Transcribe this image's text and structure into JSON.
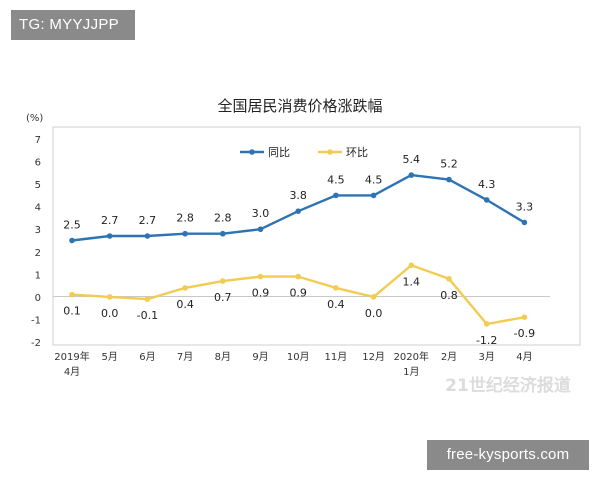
{
  "overlays": {
    "top_left_badge": "TG: MYYJJPP",
    "bottom_right_badge": "free-kysports.com",
    "faint_watermark": "21世纪经济报道"
  },
  "chart_data": {
    "type": "line",
    "title": "全国居民消费价格涨跌幅",
    "ylabel": "(%)",
    "ylim": [
      -2,
      7
    ],
    "yticks": [
      -2,
      -1,
      0,
      1,
      2,
      3,
      4,
      5,
      6,
      7
    ],
    "categories": [
      [
        "2019年",
        "4月"
      ],
      [
        "5月"
      ],
      [
        "6月"
      ],
      [
        "7月"
      ],
      [
        "8月"
      ],
      [
        "9月"
      ],
      [
        "10月"
      ],
      [
        "11月"
      ],
      [
        "12月"
      ],
      [
        "2020年",
        "1月"
      ],
      [
        "2月"
      ],
      [
        "3月"
      ],
      [
        "4月"
      ]
    ],
    "series": [
      {
        "name": "同比",
        "color": "#2e74b5",
        "values": [
          2.5,
          2.7,
          2.7,
          2.8,
          2.8,
          3.0,
          3.8,
          4.5,
          4.5,
          5.4,
          5.2,
          4.3,
          3.3
        ],
        "labels": [
          "2.5",
          "2.7",
          "2.7",
          "2.8",
          "2.8",
          "3.0",
          "3.8",
          "4.5",
          "4.5",
          "5.4",
          "5.2",
          "4.3",
          "3.3"
        ]
      },
      {
        "name": "环比",
        "color": "#f2cc52",
        "values": [
          0.1,
          0.0,
          -0.1,
          0.4,
          0.7,
          0.9,
          0.9,
          0.4,
          0.0,
          1.4,
          0.8,
          -1.2,
          -0.9
        ],
        "labels": [
          "0.1",
          "0.0",
          "-0.1",
          "0.4",
          "0.7",
          "0.9",
          "0.9",
          "0.4",
          "0.0",
          "1.4",
          "0.8",
          "-1.2",
          "-0.9"
        ]
      }
    ],
    "legend": "top-center",
    "grid": false
  }
}
